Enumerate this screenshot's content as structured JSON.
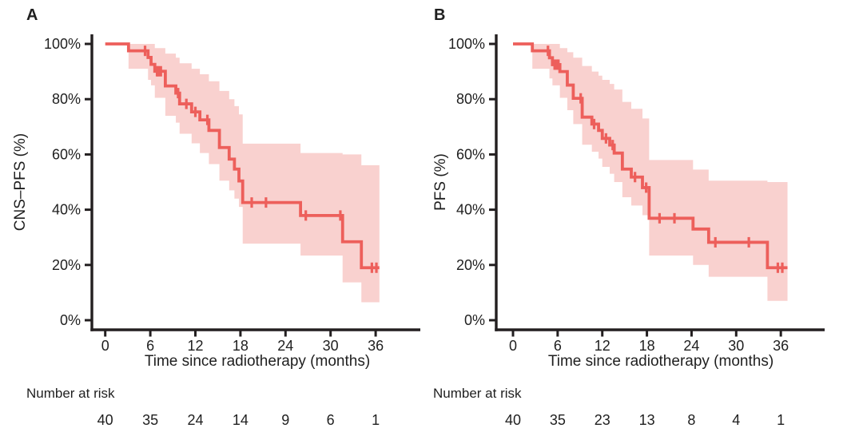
{
  "figure": {
    "background": "#ffffff"
  },
  "colors": {
    "line": "#ed5f5b",
    "band": "#f9d1cf",
    "axis": "#231f20",
    "text": "#1f1f1f"
  },
  "chart_data": [
    {
      "type": "line",
      "subtype": "kaplan_meier_step",
      "panel_label": "A",
      "ylabel": "CNS–PFS (%)",
      "xlabel": "Time since radiotherapy (months)",
      "risk_label": "Number at risk",
      "x_ticks": [
        0,
        6,
        12,
        18,
        24,
        30,
        36
      ],
      "y_ticks": [
        0,
        20,
        40,
        60,
        80,
        100
      ],
      "y_tick_labels": [
        "0%",
        "20%",
        "40%",
        "60%",
        "80%",
        "100%"
      ],
      "xlim": [
        0,
        42
      ],
      "ylim": [
        0,
        100
      ],
      "grid": false,
      "legend": "none",
      "end_time": 36.5,
      "steps": [
        [
          0,
          100
        ],
        [
          3.1,
          97.5
        ],
        [
          5.7,
          95.1
        ],
        [
          6.1,
          92.6
        ],
        [
          6.6,
          90.1
        ],
        [
          8.0,
          84.8
        ],
        [
          9.4,
          82.2
        ],
        [
          9.9,
          78.3
        ],
        [
          11.5,
          75.4
        ],
        [
          12.6,
          72.5
        ],
        [
          13.8,
          68.7
        ],
        [
          15.2,
          62.5
        ],
        [
          16.5,
          58.3
        ],
        [
          17.2,
          54.7
        ],
        [
          17.8,
          50.4
        ],
        [
          18.3,
          42.6
        ],
        [
          26.0,
          37.9
        ],
        [
          31.6,
          28.4
        ],
        [
          34.1,
          19.0
        ]
      ],
      "censors": [
        [
          5.3,
          97.5
        ],
        [
          6.9,
          90.1
        ],
        [
          7.1,
          90.1
        ],
        [
          7.4,
          90.1
        ],
        [
          9.7,
          82.2
        ],
        [
          10.8,
          78.3
        ],
        [
          12.0,
          75.4
        ],
        [
          13.6,
          72.5
        ],
        [
          19.5,
          42.6
        ],
        [
          21.4,
          42.6
        ],
        [
          26.7,
          37.9
        ],
        [
          31.3,
          37.9
        ],
        [
          35.5,
          19.0
        ],
        [
          36.1,
          19.0
        ]
      ],
      "band": [
        [
          3.1,
          100,
          91
        ],
        [
          5.7,
          100,
          87
        ],
        [
          6.1,
          100,
          85
        ],
        [
          6.6,
          98.5,
          80.5
        ],
        [
          8.0,
          96.5,
          74
        ],
        [
          9.4,
          95,
          71.5
        ],
        [
          9.9,
          93,
          67.5
        ],
        [
          11.5,
          91,
          64
        ],
        [
          12.6,
          89,
          60.5
        ],
        [
          13.8,
          86.5,
          56.5
        ],
        [
          15.2,
          83,
          50.5
        ],
        [
          16.5,
          80,
          47
        ],
        [
          17.2,
          77.5,
          44
        ],
        [
          17.8,
          74.5,
          41
        ],
        [
          18.3,
          63.9,
          27.7
        ],
        [
          26.0,
          60.5,
          23.4
        ],
        [
          31.6,
          60,
          13.7
        ],
        [
          34.1,
          56.1,
          6.5
        ]
      ],
      "risk_counts": [
        40,
        35,
        24,
        14,
        9,
        6,
        1
      ]
    },
    {
      "type": "line",
      "subtype": "kaplan_meier_step",
      "panel_label": "B",
      "ylabel": "PFS (%)",
      "xlabel": "Time since radiotherapy (months)",
      "risk_label": "Number at risk",
      "x_ticks": [
        0,
        6,
        12,
        18,
        24,
        30,
        36
      ],
      "y_ticks": [
        0,
        20,
        40,
        60,
        80,
        100
      ],
      "y_tick_labels": [
        "0%",
        "20%",
        "40%",
        "60%",
        "80%",
        "100%"
      ],
      "xlim": [
        0,
        42
      ],
      "ylim": [
        0,
        100
      ],
      "grid": false,
      "legend": "none",
      "end_time": 36.9,
      "steps": [
        [
          0,
          100
        ],
        [
          2.6,
          97.5
        ],
        [
          4.9,
          95.0
        ],
        [
          5.3,
          92.5
        ],
        [
          6.3,
          90.0
        ],
        [
          7.3,
          85.1
        ],
        [
          8.1,
          80.3
        ],
        [
          9.3,
          73.5
        ],
        [
          10.6,
          71.0
        ],
        [
          11.5,
          68.7
        ],
        [
          12.0,
          65.8
        ],
        [
          13.0,
          63.4
        ],
        [
          13.6,
          60.5
        ],
        [
          14.7,
          54.7
        ],
        [
          15.9,
          51.8
        ],
        [
          17.4,
          48.0
        ],
        [
          18.3,
          36.9
        ],
        [
          24.2,
          33.0
        ],
        [
          26.3,
          28.2
        ],
        [
          34.2,
          19.0
        ]
      ],
      "censors": [
        [
          4.7,
          97.5
        ],
        [
          5.6,
          92.5
        ],
        [
          5.9,
          92.5
        ],
        [
          6.1,
          92.5
        ],
        [
          9.1,
          80.3
        ],
        [
          10.9,
          71.0
        ],
        [
          12.5,
          65.8
        ],
        [
          13.4,
          63.4
        ],
        [
          16.4,
          51.8
        ],
        [
          17.9,
          48.0
        ],
        [
          19.7,
          36.9
        ],
        [
          21.7,
          36.9
        ],
        [
          27.2,
          28.2
        ],
        [
          31.7,
          28.2
        ],
        [
          35.6,
          19.0
        ],
        [
          36.2,
          19.0
        ]
      ],
      "band": [
        [
          2.6,
          100,
          91
        ],
        [
          4.9,
          100,
          87.5
        ],
        [
          5.3,
          100,
          85
        ],
        [
          6.3,
          98.5,
          80.5
        ],
        [
          7.3,
          97,
          76
        ],
        [
          8.1,
          95,
          71
        ],
        [
          9.3,
          92,
          63.5
        ],
        [
          10.6,
          90,
          61
        ],
        [
          11.5,
          88.5,
          58.5
        ],
        [
          12.0,
          87,
          55.5
        ],
        [
          13.0,
          85.5,
          53
        ],
        [
          13.6,
          83.5,
          50
        ],
        [
          14.7,
          79,
          44.5
        ],
        [
          15.9,
          76.5,
          41.5
        ],
        [
          17.4,
          73,
          38
        ],
        [
          18.3,
          58,
          23.4
        ],
        [
          24.2,
          54.5,
          20
        ],
        [
          26.3,
          50.5,
          15.7
        ],
        [
          34.2,
          50,
          7
        ]
      ],
      "risk_counts": [
        40,
        35,
        23,
        13,
        8,
        4,
        1
      ]
    }
  ]
}
